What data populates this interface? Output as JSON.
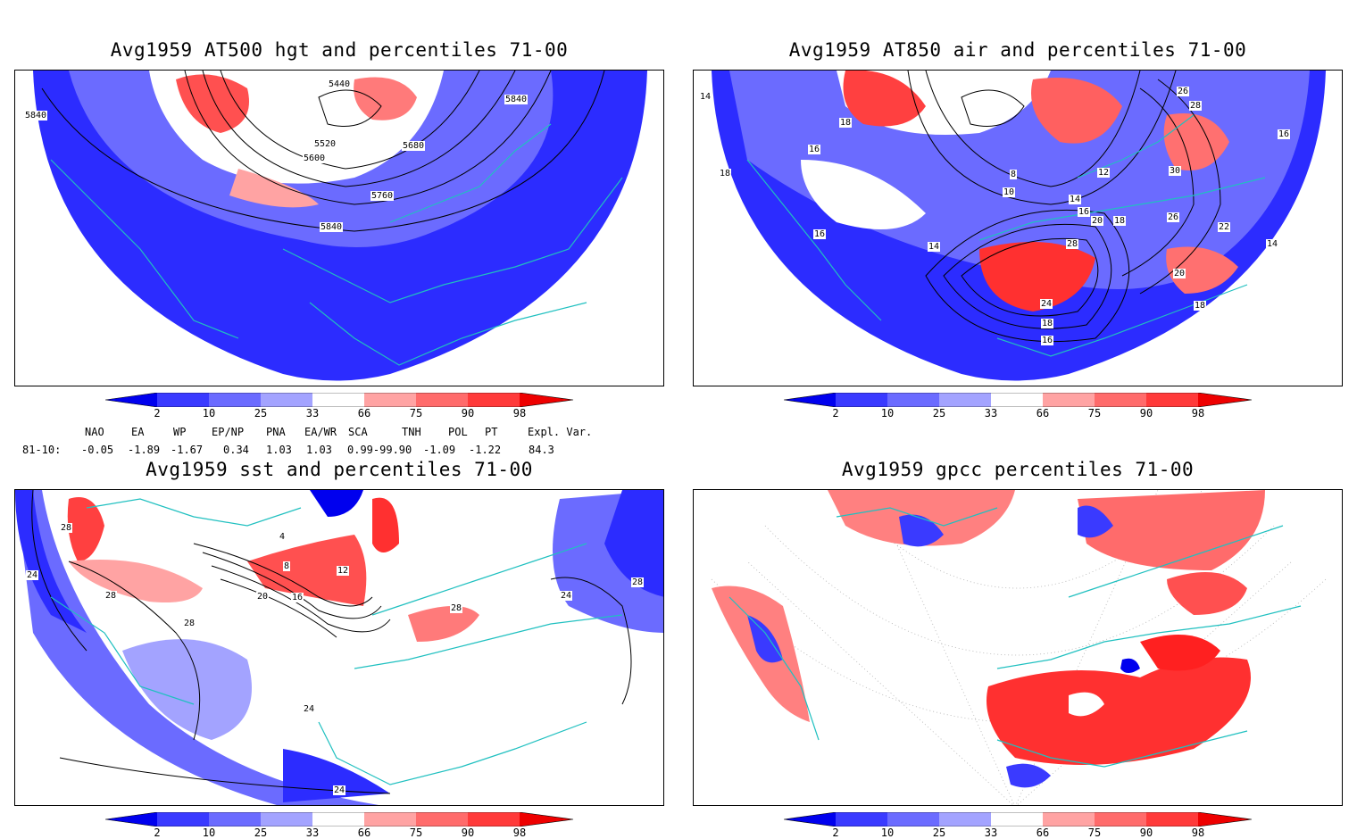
{
  "panels": [
    {
      "id": "hgt",
      "title": "Avg1959 AT500 hgt and percentiles 71-00",
      "contour_labels": [
        "5440",
        "5840",
        "5520",
        "5680",
        "5600",
        "5760",
        "5840",
        "5840"
      ]
    },
    {
      "id": "air",
      "title": "Avg1959 AT850 air and percentiles 71-00",
      "contour_labels": [
        "14",
        "18",
        "16",
        "18",
        "16",
        "14",
        "10",
        "8",
        "12",
        "14",
        "16",
        "18",
        "20",
        "28",
        "24",
        "18",
        "16",
        "26",
        "22",
        "20",
        "18",
        "30",
        "28",
        "26",
        "16",
        "14"
      ]
    },
    {
      "id": "sst",
      "title": "Avg1959 sst and percentiles 71-00",
      "contour_labels": [
        "28",
        "24",
        "28",
        "28",
        "24",
        "20",
        "16",
        "12",
        "8",
        "4",
        "24",
        "28",
        "24",
        "28"
      ]
    },
    {
      "id": "gpcc",
      "title": "Avg1959 gpcc percentiles 71-00",
      "contour_labels": []
    }
  ],
  "colorbar": {
    "labels": [
      "2",
      "10",
      "25",
      "33",
      "66",
      "75",
      "90",
      "98"
    ],
    "colors": {
      "blue": [
        "#0000ee",
        "#3a3aff",
        "#6b6bff",
        "#a3a3ff"
      ],
      "red": [
        "#ffa3a3",
        "#ff6b6b",
        "#ff3a3a",
        "#ee0000"
      ]
    }
  },
  "indices": {
    "row_label": "81-10:",
    "headers": [
      "NAO",
      "EA",
      "WP",
      "EP/NP",
      "PNA",
      "EA/WR",
      "SCA",
      "TNH",
      "POL",
      "PT",
      "Expl. Var."
    ],
    "values": [
      "-0.05",
      "-1.89",
      "-1.67",
      "0.34",
      "1.03",
      "1.03",
      "0.99-99.90",
      "-1.09",
      "-1.22",
      "",
      "84.3"
    ]
  },
  "map_colors": {
    "coast": "#20c0c0",
    "contour": "#000000"
  }
}
